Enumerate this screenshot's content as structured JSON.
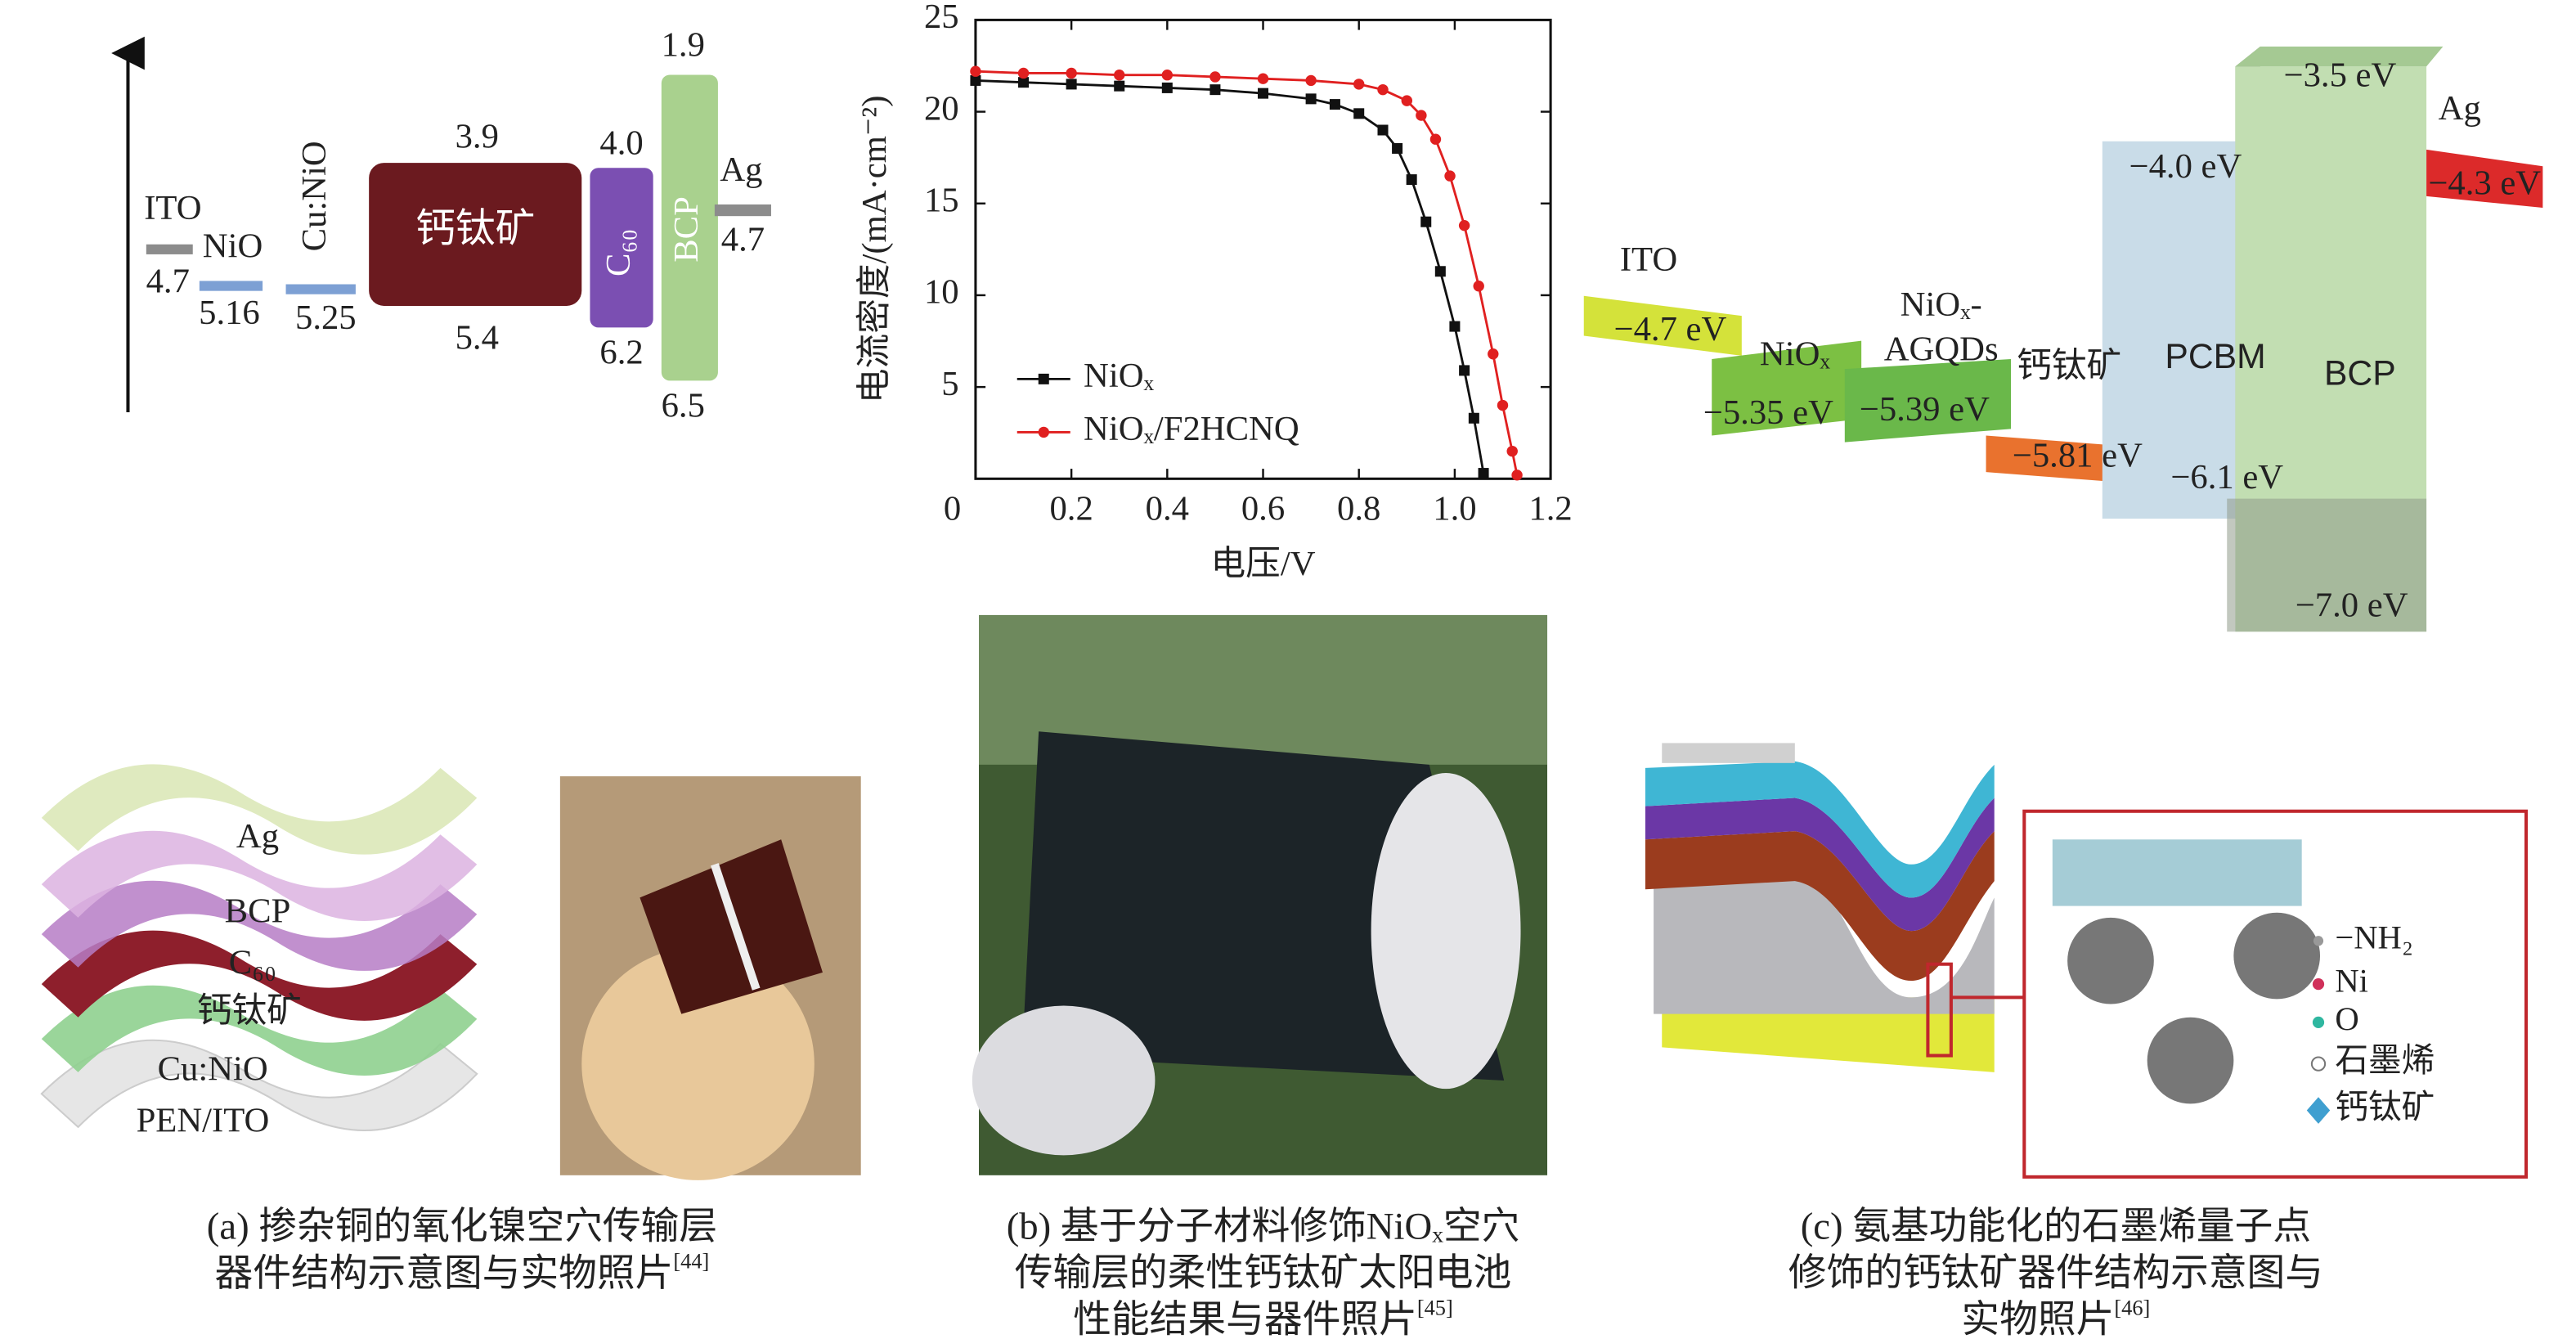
{
  "panel_a": {
    "energy_levels": [
      {
        "label": "ITO",
        "values": [
          "4.7"
        ]
      },
      {
        "label": "NiO",
        "values": [
          "5.16"
        ]
      },
      {
        "label": "Cu:NiO",
        "values": [
          "5.25"
        ]
      },
      {
        "label": "钙钛矿",
        "values": [
          "3.9",
          "5.4"
        ]
      },
      {
        "label": "C₆₀",
        "values": [
          "4.0",
          "6.2"
        ]
      },
      {
        "label": "BCP",
        "values": [
          "1.9",
          "6.5"
        ]
      },
      {
        "label": "Ag",
        "values": [
          "4.7"
        ]
      }
    ],
    "layers": [
      "Ag",
      "BCP",
      "C₆₀",
      "钙钛矿",
      "Cu:NiO",
      "PEN/ITO"
    ],
    "caption": {
      "lines": [
        "(a) 掺杂铜的氧化镍空穴传输层",
        "器件结构示意图与实物照片"
      ],
      "ref": "[44]"
    }
  },
  "chart_data": {
    "type": "line",
    "x_label": "电压/V",
    "y_label": "电流密度/(mA·cm⁻²)",
    "xlim": [
      0,
      1.2
    ],
    "xticks": [
      0,
      0.2,
      0.4,
      0.6,
      0.8,
      {
        "value": 1,
        "label": "1.0"
      },
      1.2
    ],
    "ylim": [
      0,
      25
    ],
    "yticks": [
      5,
      10,
      15,
      20,
      25
    ],
    "series": [
      {
        "name": "NiOₓ",
        "color": "#111111",
        "marker": "square",
        "x": [
          0,
          0.1,
          0.2,
          0.3,
          0.4,
          0.5,
          0.6,
          0.7,
          0.75,
          0.8,
          0.85,
          0.88,
          0.91,
          0.94,
          0.97,
          1.0,
          1.02,
          1.04,
          1.06
        ],
        "values": [
          21.7,
          21.6,
          21.5,
          21.4,
          21.3,
          21.2,
          21.0,
          20.7,
          20.4,
          19.9,
          19.0,
          18.0,
          16.3,
          14.0,
          11.3,
          8.3,
          5.9,
          3.3,
          0.3
        ]
      },
      {
        "name": "NiOₓ/F2HCNQ",
        "color": "#e02020",
        "marker": "circle",
        "x": [
          0,
          0.1,
          0.2,
          0.3,
          0.4,
          0.5,
          0.6,
          0.7,
          0.8,
          0.85,
          0.9,
          0.93,
          0.96,
          0.99,
          1.02,
          1.05,
          1.08,
          1.1,
          1.12,
          1.13
        ],
        "values": [
          22.2,
          22.1,
          22.1,
          22.0,
          22.0,
          21.9,
          21.8,
          21.7,
          21.5,
          21.2,
          20.6,
          19.8,
          18.5,
          16.5,
          13.8,
          10.5,
          6.8,
          4.0,
          1.5,
          0.2
        ]
      }
    ]
  },
  "panel_b": {
    "caption": {
      "lines": [
        "(b) 基于分子材料修饰NiOₓ空穴",
        "传输层的柔性钙钛矿太阳电池",
        "性能结果与器件照片"
      ],
      "ref": "[45]"
    }
  },
  "panel_c": {
    "energy_levels": [
      {
        "label": "ITO",
        "values": [
          "−4.7 eV"
        ]
      },
      {
        "label": "NiOₓ",
        "values": [
          "−5.35 eV"
        ]
      },
      {
        "label_lines": [
          "NiOₓ-",
          "AGQDs"
        ],
        "values": [
          "−5.39 eV"
        ]
      },
      {
        "label": "钙钛矿",
        "values": [
          "−5.81 eV"
        ]
      },
      {
        "label": "PCBM",
        "values": [
          "−4.0 eV",
          "−6.1 eV"
        ]
      },
      {
        "label": "BCP",
        "values": [
          "−3.5 eV",
          "−7.0 eV"
        ]
      },
      {
        "label": "Ag",
        "values": [
          "−4.3 eV"
        ]
      }
    ],
    "legend": [
      "−NH₂",
      "Ni",
      "O",
      "石墨烯",
      "钙钛矿"
    ],
    "caption": {
      "lines": [
        "(c) 氨基功能化的石墨烯量子点",
        "修饰的钙钛矿器件结构示意图与",
        "实物照片"
      ],
      "ref": "[46]"
    }
  }
}
